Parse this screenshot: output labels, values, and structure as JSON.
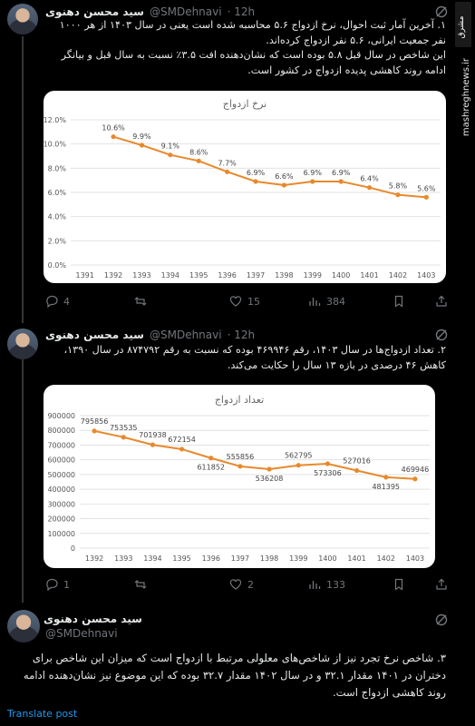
{
  "brand": {
    "watermark": "mashreghnews.ir",
    "logo_text": "مشرق"
  },
  "tweets": [
    {
      "name": "سید محسن دهنوی",
      "handle": "@SMDehnavi",
      "time": "· 12h",
      "text": "۱. آخرین آمار ثبت احوال، نرخ ازدواج ۵.۶ محاسبه شده است یعنی در سال ۱۴۰۳ از هر ۱۰۰۰ نفر جمعیت ایرانی، ۵.۶ نفر ازدواج کرده‌اند.\nاین شاخص در سال قبل ۵.۸ بوده است که نشان‌دهنده افت ۳.۵٪ نسبت به سال قبل و بیانگر ادامه روند کاهشی پدیده ازدواج در کشور است.",
      "stats": {
        "replies": "4",
        "retweets": "",
        "likes": "15",
        "views": "384"
      }
    },
    {
      "name": "سید محسن دهنوی",
      "handle": "@SMDehnavi",
      "time": "· 12h",
      "text": "۲. تعداد ازدواج‌ها در سال ۱۴۰۳، رقم ۴۶۹۹۴۶ بوده که نسبت به رقم ۸۷۴۷۹۲ در سال ۱۳۹۰، کاهش ۴۶ درصدی در بازه ۱۳ سال را حکایت می‌کند.",
      "stats": {
        "replies": "1",
        "retweets": "",
        "likes": "2",
        "views": "133"
      }
    },
    {
      "name": "سید محسن دهنوی",
      "handle": "@SMDehnavi",
      "time": "",
      "text": "۳. شاخص نرخ تجرد نیز از شاخص‌های معلولی مرتبط با ازدواج است که میزان این شاخص برای دختران در ۱۴۰۱ مقدار ۳۲.۱ و در سال ۱۴۰۲ مقدار ۳۲.۷ بوده که این موضوع نیز نشان‌دهنده ادامه روند کاهشی ازدواج است.",
      "translate": "Translate post"
    }
  ],
  "chart_data": [
    {
      "type": "line",
      "title": "نرخ ازدواج",
      "x": [
        "1391",
        "1392",
        "1393",
        "1394",
        "1395",
        "1396",
        "1397",
        "1398",
        "1399",
        "1400",
        "1401",
        "1402",
        "1403"
      ],
      "series": [
        {
          "values": [
            null,
            10.6,
            9.9,
            9.1,
            8.6,
            7.7,
            6.9,
            6.6,
            6.9,
            6.9,
            6.4,
            5.8,
            5.6
          ],
          "labels": [
            "",
            "10.6%",
            "9.9%",
            "9.1%",
            "8.6%",
            "7.7%",
            "6.9%",
            "6.6%",
            "6.9%",
            "6.9%",
            "6.4%",
            "5.8%",
            "5.6%"
          ]
        }
      ],
      "yticks": [
        "0.0%",
        "2.0%",
        "4.0%",
        "6.0%",
        "8.0%",
        "10.0%",
        "12.0%"
      ],
      "ylim": [
        0,
        12
      ],
      "color": "#e8892b",
      "grid": true
    },
    {
      "type": "line",
      "title": "تعداد ازدواج",
      "x": [
        "1392",
        "1393",
        "1394",
        "1395",
        "1396",
        "1397",
        "1398",
        "1399",
        "1400",
        "1401",
        "1402",
        "1403"
      ],
      "series": [
        {
          "values": [
            795856,
            753535,
            701938,
            672154,
            611852,
            555856,
            536208,
            562795,
            573306,
            527016,
            481395,
            469946
          ],
          "labels": [
            "795856",
            "753535",
            "701938",
            "672154",
            "611852",
            "555856",
            "536208",
            "562795",
            "573306",
            "527016",
            "481395",
            "469946"
          ]
        }
      ],
      "yticks": [
        "0",
        "100000",
        "200000",
        "300000",
        "400000",
        "500000",
        "600000",
        "700000",
        "800000",
        "900000"
      ],
      "ylim": [
        0,
        900000
      ],
      "color": "#e8892b",
      "grid": true
    }
  ]
}
